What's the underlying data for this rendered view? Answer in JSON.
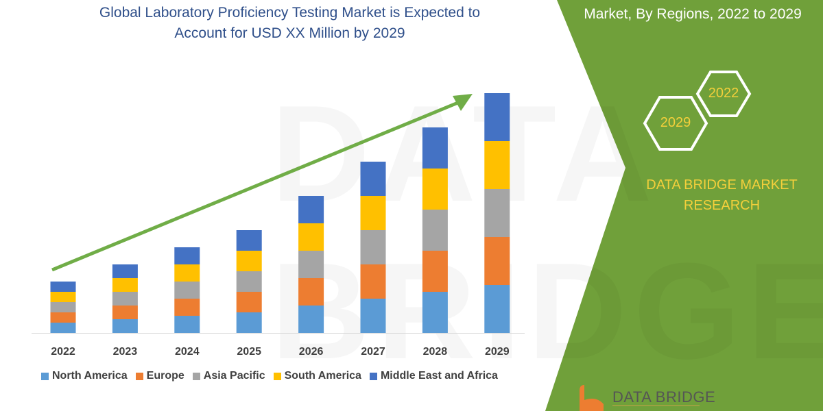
{
  "title": "Global Laboratory Proficiency Testing Market is Expected to Account for USD XX Million by 2029",
  "title_lines": [
    "Global Laboratory Proficiency Testing Market is Expected to",
    "Account for USD XX Million by 2029"
  ],
  "side_panel": {
    "title": "Market, By Regions, 2022 to 2029",
    "hex_labels": [
      "2022",
      "2029"
    ],
    "brand_lines": [
      "DATA BRIDGE MARKET",
      "RESEARCH"
    ],
    "logo_text": "DATA BRIDGE",
    "watermark": "DATA BRIDGE",
    "colors": {
      "panel": "#70a03a",
      "accent": "#f3cf3b"
    }
  },
  "chart_data": {
    "type": "bar",
    "stacked": true,
    "title": "Global Laboratory Proficiency Testing Market is Expected to Account for USD XX Million by 2029",
    "xlabel": "",
    "ylabel": "",
    "categories": [
      "2022",
      "2023",
      "2024",
      "2025",
      "2026",
      "2027",
      "2028",
      "2029"
    ],
    "ylim": [
      0,
      360
    ],
    "y_axis_shown": false,
    "grid": false,
    "legend_placement": "bottom",
    "trend_arrow": true,
    "series": [
      {
        "name": "North America",
        "color": "#5b9bd5",
        "values": [
          15,
          20,
          25,
          30,
          40,
          50,
          60,
          70
        ]
      },
      {
        "name": "Europe",
        "color": "#ed7d31",
        "values": [
          15,
          20,
          25,
          30,
          40,
          50,
          60,
          70
        ]
      },
      {
        "name": "Asia Pacific",
        "color": "#a5a5a5",
        "values": [
          15,
          20,
          25,
          30,
          40,
          50,
          60,
          70
        ]
      },
      {
        "name": "South America",
        "color": "#ffc000",
        "values": [
          15,
          20,
          25,
          30,
          40,
          50,
          60,
          70
        ]
      },
      {
        "name": "Middle East and Africa",
        "color": "#4472c4",
        "values": [
          15,
          20,
          25,
          30,
          40,
          50,
          60,
          70
        ]
      }
    ]
  }
}
